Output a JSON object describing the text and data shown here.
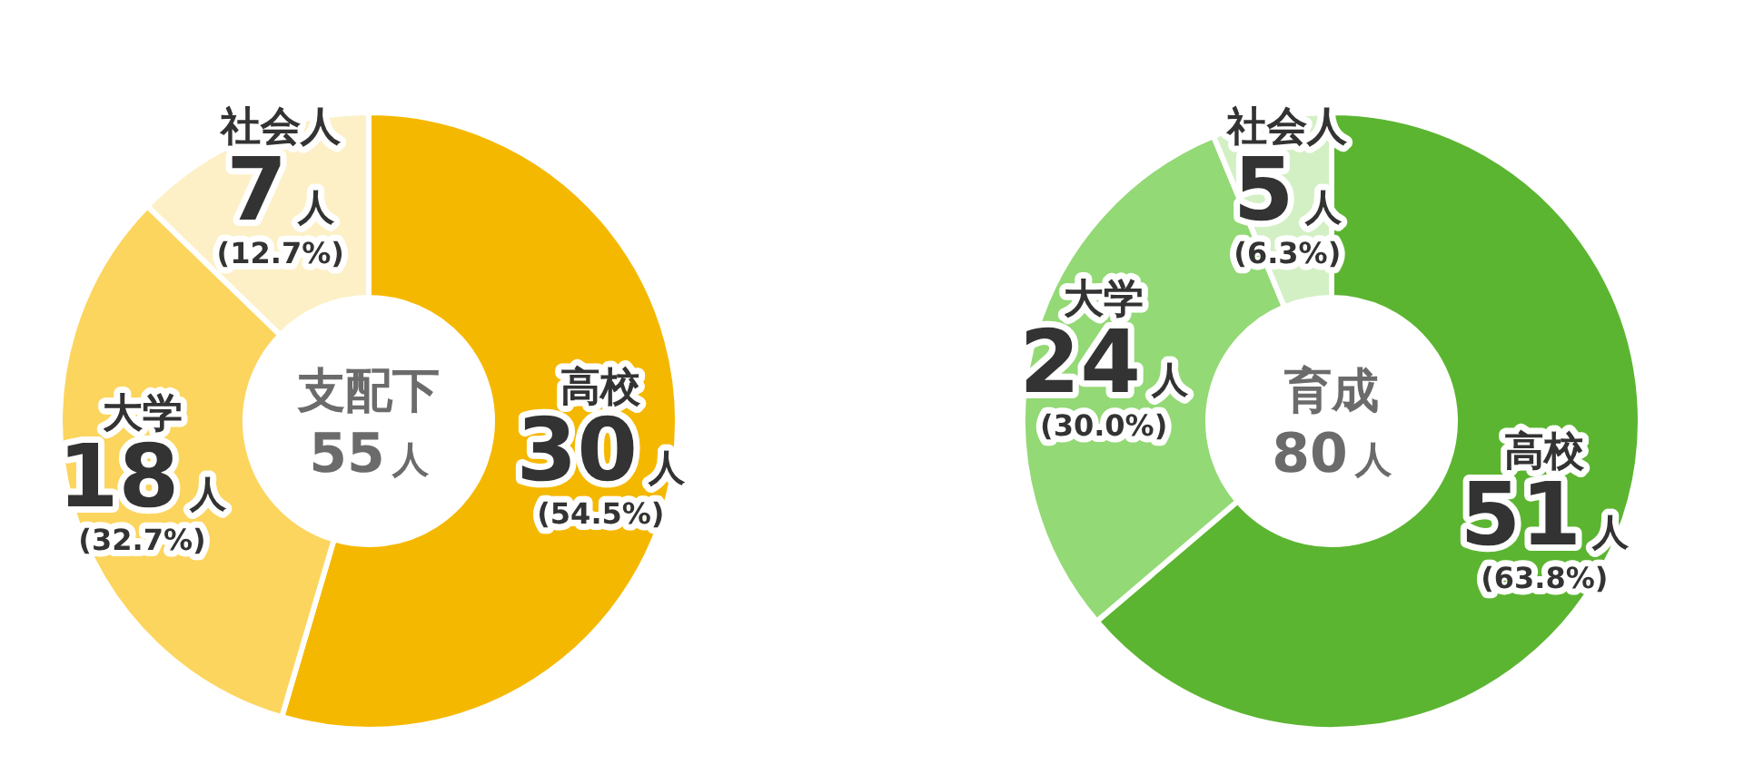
{
  "chart_data": [
    {
      "type": "donut",
      "title": "支配下",
      "subtitle": "55人",
      "categories": [
        "高校",
        "大学",
        "社会人"
      ],
      "values": [
        30,
        18,
        7
      ],
      "colors": [
        "#f5b800",
        "#fcd55e",
        "#fdf0c6"
      ],
      "value_labels": [
        "30人(54.5%)",
        "18人(32.7%)",
        "7人(12.7%)"
      ]
    },
    {
      "type": "donut",
      "title": "育成",
      "subtitle": "80人",
      "categories": [
        "高校",
        "大学",
        "社会人"
      ],
      "values": [
        51,
        24,
        5
      ],
      "colors": [
        "#5cb531",
        "#93d975",
        "#d3f0c4"
      ],
      "value_labels": [
        "51人(63.8%)",
        "24人(30.0%)",
        "5人(6.3%)"
      ]
    }
  ]
}
